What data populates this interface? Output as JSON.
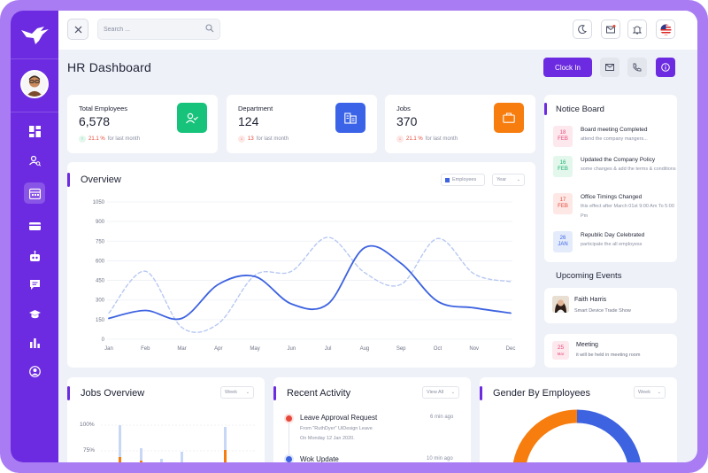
{
  "topbar": {
    "search_placeholder": "Search ...",
    "flag": "us-flag-icon"
  },
  "header": {
    "title": "HR Dashboard",
    "clock_in_label": "Clock In"
  },
  "sidebar": {
    "items": [
      {
        "icon": "dashboard-icon",
        "active": false
      },
      {
        "icon": "user-search-icon",
        "active": false
      },
      {
        "icon": "calendar-icon",
        "active": true
      },
      {
        "icon": "card-icon",
        "active": false
      },
      {
        "icon": "robot-icon",
        "active": false
      },
      {
        "icon": "chat-icon",
        "active": false
      },
      {
        "icon": "education-icon",
        "active": false
      },
      {
        "icon": "bar-chart-icon",
        "active": false
      },
      {
        "icon": "user-circle-icon",
        "active": false
      }
    ]
  },
  "stats": [
    {
      "label": "Total Employees",
      "value": "6,578",
      "change": "21.1 %",
      "suffix": "for last month",
      "trend": "up",
      "color": "#17c37b"
    },
    {
      "label": "Department",
      "value": "124",
      "change": "13",
      "suffix": "for last month",
      "trend": "down",
      "color": "#3b63e8"
    },
    {
      "label": "Jobs",
      "value": "370",
      "change": "21.1 %",
      "suffix": "for last month",
      "trend": "down",
      "color": "#f77d0f"
    }
  ],
  "overview": {
    "title": "Overview",
    "legend_label": "Employees",
    "period": "Year"
  },
  "chart_data": {
    "type": "line",
    "categories": [
      "Jan",
      "Feb",
      "Mar",
      "Apr",
      "May",
      "Jun",
      "Jul",
      "Aug",
      "Sep",
      "Oct",
      "Nov",
      "Dec"
    ],
    "ylim": [
      0,
      1050
    ],
    "yticks": [
      0,
      150,
      300,
      450,
      600,
      750,
      900,
      1050
    ],
    "series": [
      {
        "name": "Employees",
        "style": "solid",
        "color": "#3d63e0",
        "values": [
          160,
          220,
          160,
          420,
          480,
          270,
          270,
          700,
          580,
          290,
          240,
          200
        ]
      },
      {
        "style": "dashed",
        "color": "#b7c8f2",
        "values": [
          200,
          520,
          90,
          120,
          490,
          520,
          780,
          510,
          420,
          770,
          500,
          440
        ]
      }
    ]
  },
  "notice_board": {
    "title": "Notice Board",
    "items": [
      {
        "day": "18",
        "month": "FEB",
        "title": "Board meeting Completed",
        "desc": "attend the company mangers...",
        "bg": "#fde8ee",
        "fg": "#e8497a"
      },
      {
        "day": "16",
        "month": "FEB",
        "title": "Updated the Company Policy",
        "desc": "some changes & add the terms & conditions",
        "bg": "#e3f7ed",
        "fg": "#17b26a"
      },
      {
        "day": "17",
        "month": "FEB",
        "title": "Office Timings Changed",
        "desc": "this effect after March 01st 9:00 Am To 5:00 Pm",
        "bg": "#fde8e6",
        "fg": "#e5483a"
      },
      {
        "day": "26",
        "month": "JAN",
        "title": "Republic Day Celebrated",
        "desc": "participate the all employess",
        "bg": "#e4ecfb",
        "fg": "#3b63e8"
      }
    ]
  },
  "upcoming_events": {
    "title": "Upcoming Events",
    "items": [
      {
        "name": "Faith Harris",
        "desc": "Smart Device Trade Show"
      },
      {
        "day": "25",
        "month": "Mar",
        "name": "Meeting",
        "desc": "it will be held in meeting room"
      }
    ]
  },
  "jobs_overview": {
    "title": "Jobs Overview",
    "period": "Week",
    "yticks": [
      "100%",
      "75%"
    ]
  },
  "recent_activity": {
    "title": "Recent Activity",
    "view_all": "View All",
    "items": [
      {
        "title": "Leave Approval Request",
        "desc1": "From \"RuthDyer\" UiDesign Leave",
        "desc2": "On Monday 12 Jan 2020.",
        "time": "6 min ago",
        "color": "#e5483a"
      },
      {
        "title": "Wok Update",
        "time": "10 min ago",
        "color": "#3d63e0"
      }
    ]
  },
  "gender": {
    "title": "Gender By Employees",
    "period": "Week"
  },
  "colors": {
    "brand": "#6c2be0",
    "green": "#17c37b",
    "blue": "#3b63e8",
    "orange": "#f77d0f"
  }
}
